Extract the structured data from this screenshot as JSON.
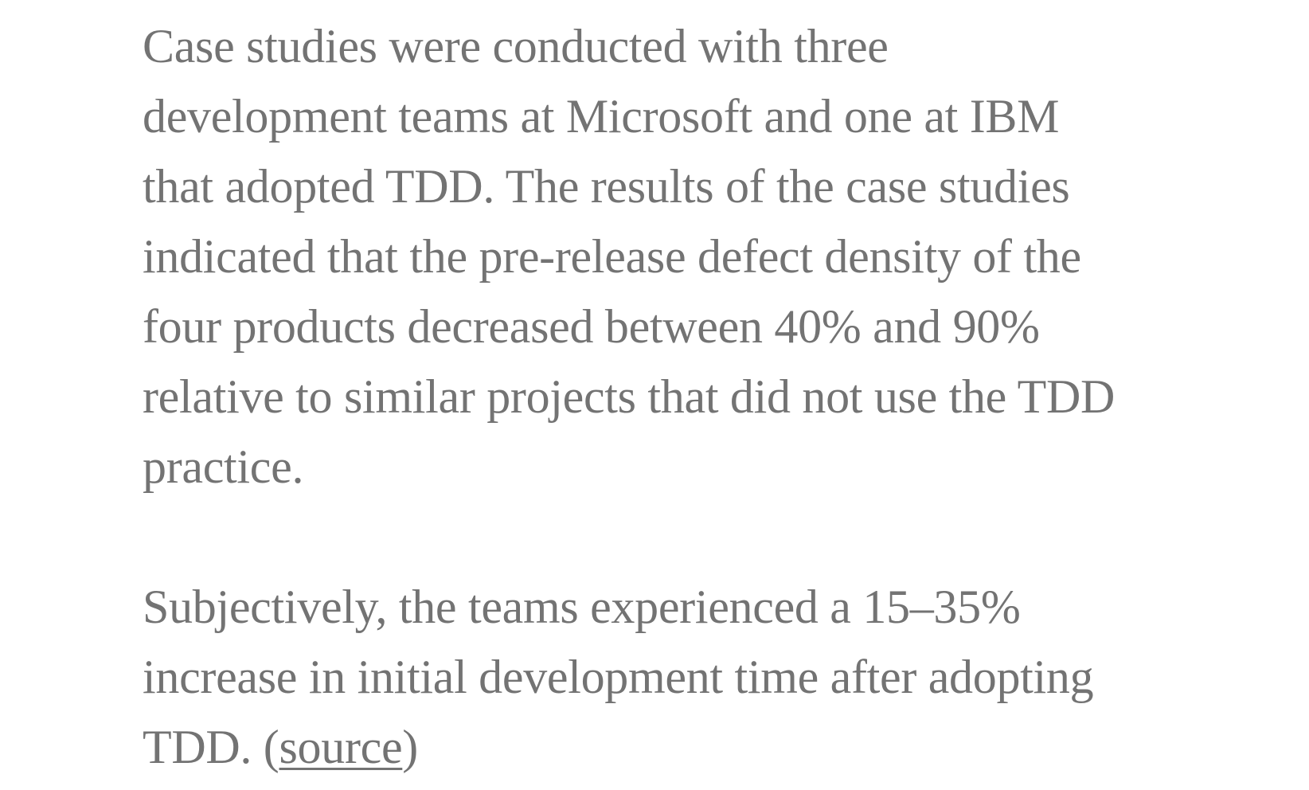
{
  "article": {
    "paragraph_1": {
      "lines": [
        "Case studies were conducted with three",
        "development teams at Microsoft and one at IBM",
        "that adopted TDD. The results of the case studies",
        "indicated that the pre-release defect density of the",
        "four products decreased between 40% and 90%",
        "relative to similar projects that did not use the TDD",
        "practice."
      ]
    },
    "paragraph_2": {
      "lines": [
        "Subjectively, the teams experienced a 15–35%",
        "increase in initial development time after adopting"
      ],
      "last_line_prefix": "TDD. (",
      "source_link_label": "source",
      "last_line_suffix": ")"
    }
  },
  "colors": {
    "text": "#737373",
    "background": "#ffffff"
  }
}
